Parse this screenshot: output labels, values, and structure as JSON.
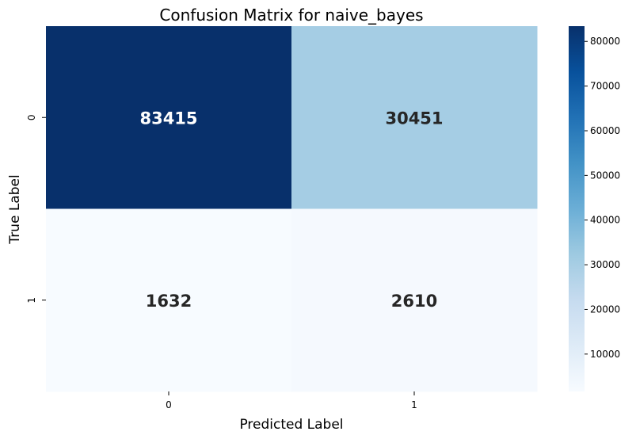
{
  "chart_data": {
    "type": "heatmap",
    "title": "Confusion Matrix for naive_bayes",
    "xlabel": "Predicted Label",
    "ylabel": "True Label",
    "x_categories": [
      "0",
      "1"
    ],
    "y_categories": [
      "0",
      "1"
    ],
    "matrix": [
      [
        83415,
        30451
      ],
      [
        1632,
        2610
      ]
    ],
    "colormap": "Blues",
    "colorbar": {
      "ticks": [
        10000,
        20000,
        30000,
        40000,
        50000,
        60000,
        70000,
        80000
      ],
      "tick_labels": [
        "10000",
        "20000",
        "30000",
        "40000",
        "50000",
        "60000",
        "70000",
        "80000"
      ],
      "range": [
        1632,
        83415
      ]
    },
    "annotations": true
  }
}
